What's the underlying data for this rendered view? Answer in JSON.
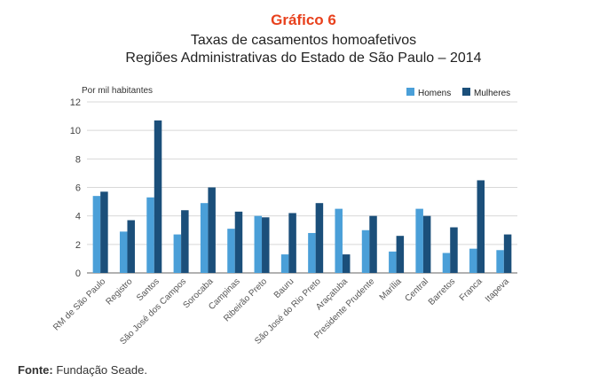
{
  "header": {
    "number": "Gráfico 6",
    "title": "Taxas de casamentos homoafetivos",
    "subtitle": "Regiões Administrativas do Estado de São Paulo – 2014"
  },
  "source": {
    "label": "Fonte:",
    "text": "Fundação Seade."
  },
  "colors": {
    "homens": "#4a9fd8",
    "mulheres": "#1b4f7a",
    "grid": "#d8d8d8",
    "axis": "#666666"
  },
  "chart_data": {
    "type": "bar",
    "title": "Taxas de casamentos homoafetivos",
    "subtitle": "Regiões Administrativas do Estado de São Paulo – 2014",
    "ylabel": "Por mil habitantes",
    "xlabel": "",
    "ylim": [
      0,
      12
    ],
    "yticks": [
      0,
      2,
      4,
      6,
      8,
      10,
      12
    ],
    "grid": true,
    "legend_position": "top-right",
    "categories": [
      "RM de São Paulo",
      "Registro",
      "Santos",
      "São José dos Campos",
      "Sorocaba",
      "Campinas",
      "Ribeirão Preto",
      "Bauru",
      "São José do Rio Preto",
      "Araçatuba",
      "Presidente Prudente",
      "Marília",
      "Central",
      "Barretos",
      "Franca",
      "Itapeva"
    ],
    "series": [
      {
        "name": "Homens",
        "values": [
          5.4,
          2.9,
          5.3,
          2.7,
          4.9,
          3.1,
          4.0,
          1.3,
          2.8,
          4.5,
          3.0,
          1.5,
          4.5,
          1.4,
          1.7,
          1.6
        ]
      },
      {
        "name": "Mulheres",
        "values": [
          5.7,
          3.7,
          10.7,
          4.4,
          6.0,
          4.3,
          3.9,
          4.2,
          4.9,
          1.3,
          4.0,
          2.6,
          4.0,
          3.2,
          6.5,
          2.7
        ]
      }
    ]
  }
}
